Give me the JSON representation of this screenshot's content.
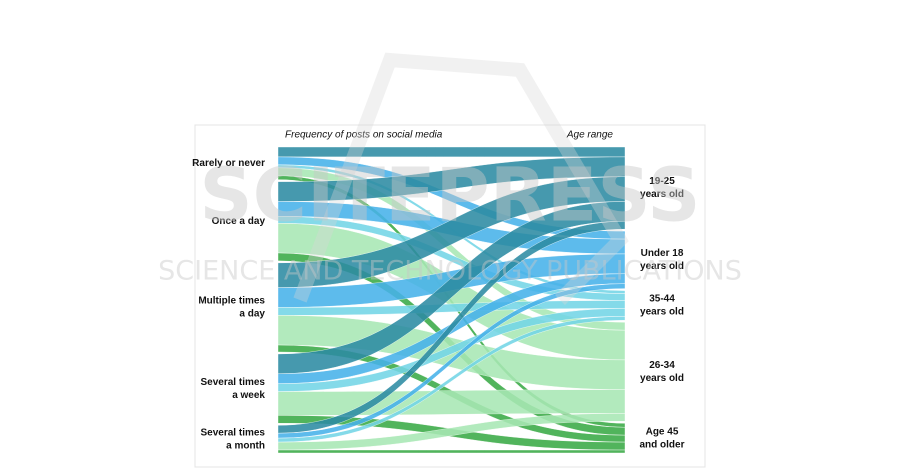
{
  "chart_data": {
    "type": "sankey",
    "title_left": "Frequency of posts on social media",
    "title_right": "Age range",
    "sources": [
      {
        "label": [
          "Rarely or never"
        ]
      },
      {
        "label": [
          "Once a day"
        ]
      },
      {
        "label": [
          "Multiple times",
          "a day"
        ]
      },
      {
        "label": [
          "Several times",
          "a week"
        ]
      },
      {
        "label": [
          "Several times",
          "a month"
        ]
      }
    ],
    "targets": [
      {
        "label": [
          "19-25",
          "years old"
        ],
        "color": "#2d8ca3"
      },
      {
        "label": [
          "Under 18",
          "years old"
        ],
        "color": "#47b2ea"
      },
      {
        "label": [
          "35-44",
          "years old"
        ],
        "color": "#74d6e6"
      },
      {
        "label": [
          "26-34",
          "years old"
        ],
        "color": "#a8e8b4"
      },
      {
        "label": [
          "Age 45",
          "and older"
        ],
        "color": "#3aaa46"
      }
    ],
    "links": [
      [
        10,
        8,
        3,
        8,
        4
      ],
      [
        20,
        15,
        7,
        30,
        8
      ],
      [
        25,
        20,
        8,
        30,
        7
      ],
      [
        20,
        10,
        8,
        24,
        8
      ],
      [
        8,
        5,
        4,
        8,
        3
      ]
    ]
  },
  "watermark": {
    "title": "SCITEPRESS",
    "subtitle": "SCIENCE AND TECHNOLOGY PUBLICATIONS"
  }
}
